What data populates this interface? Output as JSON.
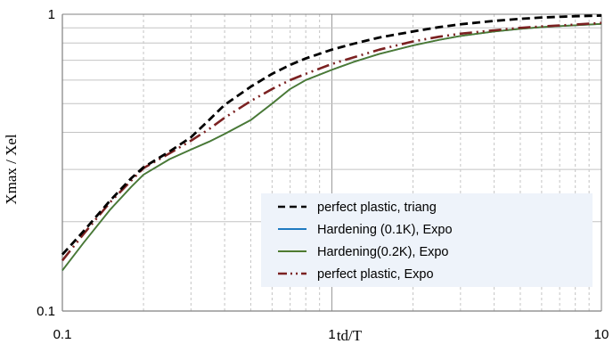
{
  "chart_data": {
    "type": "line",
    "title": "",
    "xlabel": "td/T",
    "ylabel": "Xmax / Xel",
    "xscale": "log",
    "yscale": "log",
    "xlim": [
      0.1,
      10
    ],
    "ylim": [
      0.1,
      1
    ],
    "x_ticks": [
      "0.1",
      "1",
      "10"
    ],
    "y_ticks": [
      "0.1",
      "1"
    ],
    "grid": true,
    "legend_position": "lower-right",
    "series": [
      {
        "name": "perfect plastic, triang",
        "color": "#000000",
        "style": "dashed",
        "x": [
          0.1,
          0.12,
          0.15,
          0.18,
          0.2,
          0.25,
          0.3,
          0.35,
          0.4,
          0.5,
          0.6,
          0.7,
          0.8,
          1.0,
          1.2,
          1.5,
          2.0,
          2.5,
          3.0,
          4.0,
          5.0,
          6.0,
          8.0,
          10.0
        ],
        "y": [
          0.155,
          0.186,
          0.235,
          0.28,
          0.305,
          0.345,
          0.385,
          0.44,
          0.495,
          0.57,
          0.63,
          0.675,
          0.71,
          0.76,
          0.795,
          0.835,
          0.875,
          0.905,
          0.925,
          0.95,
          0.965,
          0.975,
          0.985,
          0.99
        ]
      },
      {
        "name": "Hardening (0.1K), Expo",
        "color": "#1f7ac0",
        "style": "solid",
        "x": [
          0.1,
          0.12,
          0.15,
          0.18,
          0.2,
          0.25,
          0.3,
          0.35,
          0.4,
          0.5,
          0.6,
          0.7,
          0.8,
          1.0,
          1.2,
          1.5,
          2.0,
          2.5,
          3.0,
          4.0,
          5.0,
          6.0,
          8.0,
          10.0
        ],
        "y": [
          0.137,
          0.17,
          0.219,
          0.262,
          0.288,
          0.325,
          0.35,
          0.372,
          0.395,
          0.44,
          0.5,
          0.56,
          0.6,
          0.65,
          0.69,
          0.735,
          0.785,
          0.82,
          0.845,
          0.875,
          0.893,
          0.905,
          0.918,
          0.928
        ]
      },
      {
        "name": "Hardening(0.2K), Expo",
        "color": "#4e7a30",
        "style": "solid",
        "x": [
          0.1,
          0.12,
          0.15,
          0.18,
          0.2,
          0.25,
          0.3,
          0.35,
          0.4,
          0.5,
          0.6,
          0.7,
          0.8,
          1.0,
          1.2,
          1.5,
          2.0,
          2.5,
          3.0,
          4.0,
          5.0,
          6.0,
          8.0,
          10.0
        ],
        "y": [
          0.137,
          0.17,
          0.219,
          0.262,
          0.288,
          0.325,
          0.35,
          0.372,
          0.395,
          0.44,
          0.5,
          0.56,
          0.6,
          0.65,
          0.69,
          0.735,
          0.785,
          0.82,
          0.845,
          0.875,
          0.893,
          0.905,
          0.918,
          0.928
        ]
      },
      {
        "name": "perfect plastic, Expo",
        "color": "#7b2121",
        "style": "dash-dot-dot",
        "x": [
          0.1,
          0.12,
          0.15,
          0.18,
          0.2,
          0.25,
          0.3,
          0.35,
          0.4,
          0.5,
          0.6,
          0.7,
          0.8,
          1.0,
          1.2,
          1.5,
          2.0,
          2.5,
          3.0,
          4.0,
          5.0,
          6.0,
          8.0,
          10.0
        ],
        "y": [
          0.148,
          0.182,
          0.232,
          0.275,
          0.303,
          0.34,
          0.375,
          0.41,
          0.448,
          0.51,
          0.56,
          0.6,
          0.63,
          0.68,
          0.715,
          0.76,
          0.81,
          0.84,
          0.86,
          0.883,
          0.9,
          0.91,
          0.923,
          0.935
        ]
      }
    ]
  }
}
